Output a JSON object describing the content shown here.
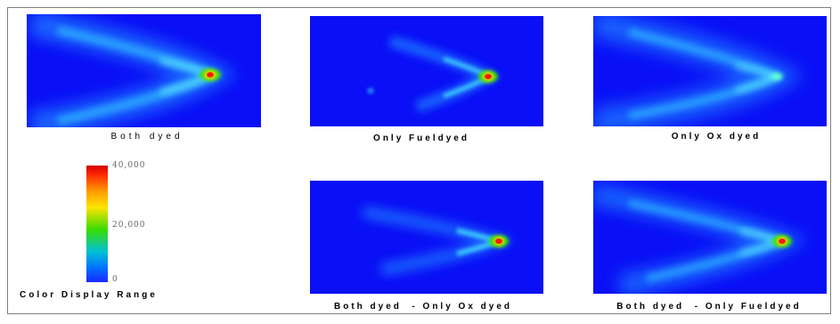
{
  "panels": [
    {
      "caption": "Both dyed"
    },
    {
      "caption": "Only Fueldyed"
    },
    {
      "caption": "Only Ox dyed"
    },
    {
      "caption": "Both dyed  - Only Ox dyed"
    },
    {
      "caption": "Both dyed  - Only Fueldyed"
    }
  ],
  "legend": {
    "title": "Color Display Range",
    "ticks": [
      "40,000",
      "20,000",
      "0"
    ]
  },
  "colors": {
    "background_blue": "#0a0ff5",
    "peak_red": "#ff1a00",
    "mid_green": "#2fe000",
    "low_cyan": "#2fd6ff"
  }
}
